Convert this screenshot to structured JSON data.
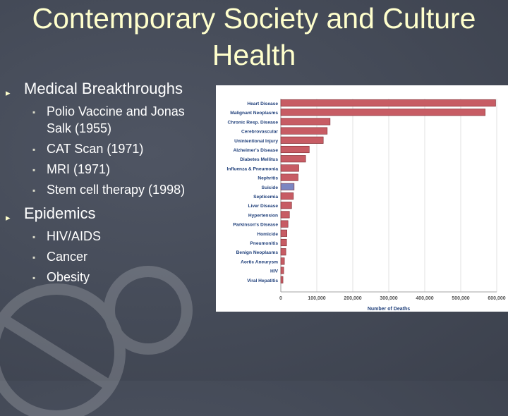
{
  "slide": {
    "title_line1": "Contemporary Society and Culture",
    "title_line2": "Health"
  },
  "bullets": {
    "b1": {
      "label": "Medical Breakthroughs",
      "items": [
        "Polio Vaccine and Jonas Salk (1955)",
        "CAT Scan (1971)",
        "MRI (1971)",
        "Stem cell therapy (1998)"
      ]
    },
    "b2": {
      "label": "Epidemics",
      "items": [
        "HIV/AIDS",
        "Cancer",
        "Obesity"
      ]
    }
  },
  "chart_data": {
    "type": "bar",
    "orientation": "horizontal",
    "categories": [
      "Heart Disease",
      "Malignant Neoplasms",
      "Chronic Resp. Disease",
      "Cerebrovascular",
      "Unintentional Injury",
      "Alzheimer's Disease",
      "Diabetes Mellitus",
      "Influenza & Pneumonia",
      "Nephritis",
      "Suicide",
      "Septicemia",
      "Liver Disease",
      "Hypertension",
      "Parkinson's Disease",
      "Homicide",
      "Pneumonitis",
      "Benign Neoplasms",
      "Aortic Aneurysm",
      "HIV",
      "Viral Hepatitis"
    ],
    "values": [
      597000,
      568000,
      137000,
      129000,
      118000,
      79000,
      69000,
      50000,
      48000,
      37000,
      35000,
      30000,
      24000,
      20000,
      17000,
      16000,
      14000,
      10000,
      8000,
      6000
    ],
    "highlight": "Suicide",
    "xlabel": "Number of Deaths",
    "xlim": [
      0,
      600000
    ],
    "xticks": [
      "0",
      "100,000",
      "200,000",
      "300,000",
      "400,000",
      "500,000",
      "600,000"
    ],
    "colors": {
      "bar": "#c75c64",
      "highlight": "#7b86c2",
      "bar_edge": "#7a2a30"
    }
  }
}
